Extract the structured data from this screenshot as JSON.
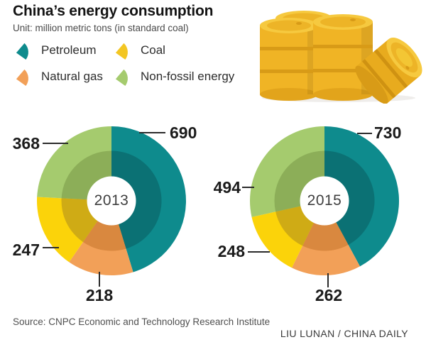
{
  "header": {
    "title": "China’s energy consumption",
    "unit_label": "Unit: million metric tons (in standard coal)"
  },
  "legend": {
    "items": [
      {
        "label": "Petroleum",
        "color": "#0e8b8d"
      },
      {
        "label": "Coal",
        "color": "#f3c623"
      },
      {
        "label": "Natural gas",
        "color": "#f2a058"
      },
      {
        "label": "Non-fossil energy",
        "color": "#a5cb6e"
      }
    ]
  },
  "chart_data": [
    {
      "type": "pie",
      "subtype": "two-ring donut",
      "title": "2013",
      "unit": "million metric tons (in standard coal)",
      "direction": "clockwise from top",
      "segments": [
        {
          "label": "Petroleum",
          "value": 690,
          "color": "#0e8b8d",
          "inner_color": "#0b7174"
        },
        {
          "label": "Natural gas",
          "value": 218,
          "color": "#f2a058",
          "inner_color": "#d9883f"
        },
        {
          "label": "Coal",
          "value": 247,
          "color": "#fbd30a",
          "inner_color": "#cfab15"
        },
        {
          "label": "Non-fossil energy",
          "value": 368,
          "color": "#a5cb6e",
          "inner_color": "#8cae58"
        }
      ]
    },
    {
      "type": "pie",
      "subtype": "two-ring donut",
      "title": "2015",
      "unit": "million metric tons (in standard coal)",
      "direction": "clockwise from top",
      "segments": [
        {
          "label": "Petroleum",
          "value": 730,
          "color": "#0e8b8d",
          "inner_color": "#0b7174"
        },
        {
          "label": "Natural gas",
          "value": 262,
          "color": "#f2a058",
          "inner_color": "#d9883f"
        },
        {
          "label": "Coal",
          "value": 248,
          "color": "#fbd30a",
          "inner_color": "#cfab15"
        },
        {
          "label": "Non-fossil energy",
          "value": 494,
          "color": "#a5cb6e",
          "inner_color": "#8cae58"
        }
      ]
    }
  ],
  "footer": {
    "source": "Source: CNPC Economic and Technology Research Institute",
    "credit": "LIU LUNAN / CHINA DAILY"
  },
  "icons": {
    "legend_swatch": "fan-wedge-icon",
    "illustration": "yellow-oil-barrels"
  }
}
